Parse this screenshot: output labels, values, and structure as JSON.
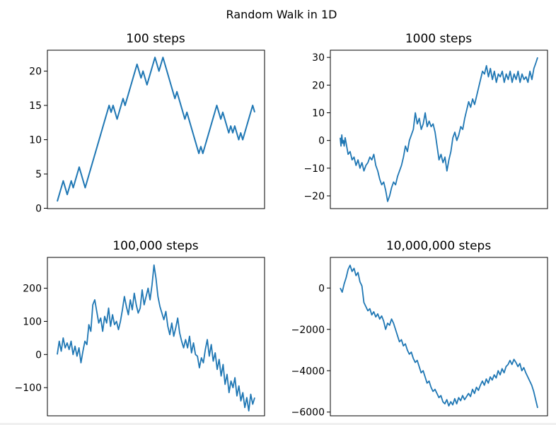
{
  "figure": {
    "suptitle": "Random Walk in 1D",
    "line_color": "#1f77b4"
  },
  "chart_data": [
    {
      "type": "line",
      "title": "100 steps",
      "xlabel": "",
      "ylabel": "",
      "x_ticks_visible": false,
      "ylim": [
        -0.05,
        23.05
      ],
      "yticks": [
        0,
        5,
        10,
        15,
        20
      ],
      "ytick_labels": [
        "0",
        "5",
        "10",
        "15",
        "20"
      ],
      "grid": false,
      "series": [
        {
          "values": [
            1,
            2,
            3,
            4,
            3,
            2,
            3,
            4,
            3,
            4,
            5,
            6,
            5,
            4,
            3,
            4,
            5,
            6,
            7,
            8,
            9,
            10,
            11,
            12,
            13,
            14,
            15,
            14,
            15,
            14,
            13,
            14,
            15,
            16,
            15,
            16,
            17,
            18,
            19,
            20,
            21,
            20,
            19,
            20,
            19,
            18,
            19,
            20,
            21,
            22,
            21,
            20,
            21,
            22,
            21,
            20,
            19,
            18,
            17,
            16,
            17,
            16,
            15,
            14,
            13,
            14,
            13,
            12,
            11,
            10,
            9,
            8,
            9,
            8,
            9,
            10,
            11,
            12,
            13,
            14,
            15,
            14,
            13,
            14,
            13,
            12,
            11,
            12,
            11,
            12,
            11,
            10,
            11,
            10,
            11,
            12,
            13,
            14,
            15,
            14
          ]
        }
      ]
    },
    {
      "type": "line",
      "title": "1000 steps",
      "xlabel": "",
      "ylabel": "",
      "x_ticks_visible": false,
      "ylim": [
        -24.6,
        32.6
      ],
      "yticks": [
        -20,
        -10,
        0,
        10,
        20,
        30
      ],
      "ytick_labels": [
        "−20",
        "−10",
        "0",
        "10",
        "20",
        "30"
      ],
      "grid": false,
      "series": [
        {
          "x": [
            0,
            4,
            8,
            12,
            16,
            20,
            25,
            30,
            35,
            40,
            50,
            60,
            70,
            80,
            90,
            100,
            110,
            120,
            130,
            140,
            150,
            160,
            170,
            180,
            190,
            200,
            210,
            220,
            230,
            240,
            250,
            260,
            270,
            280,
            290,
            300,
            310,
            320,
            330,
            340,
            350,
            360,
            370,
            380,
            390,
            400,
            410,
            420,
            430,
            440,
            450,
            460,
            470,
            480,
            490,
            500,
            510,
            520,
            530,
            540,
            550,
            560,
            570,
            580,
            590,
            600,
            610,
            620,
            630,
            640,
            650,
            660,
            670,
            680,
            690,
            700,
            710,
            720,
            730,
            740,
            750,
            760,
            770,
            780,
            790,
            800,
            810,
            820,
            830,
            840,
            850,
            860,
            870,
            880,
            890,
            900,
            910,
            920,
            930,
            940,
            950,
            960,
            970,
            980,
            990,
            999
          ],
          "values": [
            1,
            -2,
            2,
            -1,
            0,
            -2,
            1,
            -1,
            -3,
            -5,
            -4,
            -7,
            -6,
            -9,
            -7,
            -10,
            -8,
            -11,
            -9,
            -8,
            -6,
            -7,
            -5,
            -9,
            -11,
            -14,
            -16,
            -15,
            -18,
            -22,
            -20,
            -17,
            -15,
            -16,
            -13,
            -11,
            -9,
            -6,
            -2,
            -4,
            0,
            2,
            4,
            10,
            6,
            8,
            4,
            6,
            10,
            5,
            7,
            5,
            6,
            3,
            -2,
            -7,
            -5,
            -8,
            -6,
            -11,
            -7,
            -4,
            1,
            3,
            0,
            2,
            5,
            4,
            8,
            11,
            14,
            12,
            15,
            13,
            16,
            19,
            22,
            25,
            24,
            27,
            23,
            26,
            22,
            25,
            21,
            24,
            23,
            25,
            21,
            24,
            22,
            25,
            21,
            24,
            22,
            25,
            21,
            24,
            22,
            23,
            21,
            25,
            22,
            26,
            28,
            30
          ]
        }
      ]
    },
    {
      "type": "line",
      "title": "100,000 steps",
      "xlabel": "",
      "ylabel": "",
      "x_ticks_visible": false,
      "ylim": [
        -185,
        293
      ],
      "yticks": [
        -100,
        0,
        100,
        200
      ],
      "ytick_labels": [
        "−100",
        "0",
        "100",
        "200"
      ],
      "grid": false,
      "series": [
        {
          "x": [
            0,
            1000,
            2000,
            3000,
            4000,
            5000,
            6000,
            7000,
            8000,
            9000,
            10000,
            11000,
            12000,
            13000,
            14000,
            15000,
            16000,
            17000,
            18000,
            19000,
            20000,
            21000,
            22000,
            23000,
            24000,
            25000,
            26000,
            27000,
            28000,
            29000,
            30000,
            31000,
            32000,
            33000,
            34000,
            35000,
            36000,
            37000,
            38000,
            39000,
            40000,
            41000,
            42000,
            43000,
            44000,
            45000,
            46000,
            47000,
            48000,
            49000,
            50000,
            51000,
            52000,
            53000,
            54000,
            55000,
            56000,
            57000,
            58000,
            59000,
            60000,
            61000,
            62000,
            63000,
            64000,
            65000,
            66000,
            67000,
            68000,
            69000,
            70000,
            71000,
            72000,
            73000,
            74000,
            75000,
            76000,
            77000,
            78000,
            79000,
            80000,
            81000,
            82000,
            83000,
            84000,
            85000,
            86000,
            87000,
            88000,
            89000,
            90000,
            91000,
            92000,
            93000,
            94000,
            95000,
            96000,
            97000,
            98000,
            99000,
            99999
          ],
          "values": [
            0,
            40,
            10,
            50,
            20,
            35,
            15,
            40,
            0,
            25,
            -5,
            20,
            -25,
            10,
            40,
            30,
            90,
            70,
            150,
            165,
            130,
            95,
            110,
            70,
            115,
            95,
            140,
            85,
            120,
            90,
            100,
            75,
            100,
            135,
            175,
            145,
            120,
            165,
            135,
            185,
            150,
            125,
            140,
            195,
            150,
            175,
            200,
            165,
            210,
            270,
            230,
            175,
            145,
            125,
            105,
            130,
            85,
            60,
            95,
            55,
            80,
            110,
            65,
            40,
            20,
            45,
            20,
            55,
            5,
            35,
            0,
            -5,
            -40,
            -10,
            -25,
            15,
            45,
            -5,
            30,
            -20,
            5,
            -45,
            -15,
            -65,
            -30,
            -90,
            -60,
            -115,
            -80,
            -100,
            -70,
            -125,
            -95,
            -140,
            -115,
            -160,
            -130,
            -170,
            -120,
            -150,
            -130
          ]
        }
      ]
    },
    {
      "type": "line",
      "title": "10,000,000 steps",
      "xlabel": "",
      "ylabel": "",
      "x_ticks_visible": false,
      "ylim": [
        -6180,
        1480
      ],
      "yticks": [
        -6000,
        -4000,
        -2000,
        0
      ],
      "ytick_labels": [
        "−6000",
        "−4000",
        "−2000",
        "0"
      ],
      "grid": false,
      "series": [
        {
          "x": [
            0,
            100000,
            200000,
            300000,
            400000,
            500000,
            600000,
            700000,
            800000,
            900000,
            1000000,
            1100000,
            1200000,
            1300000,
            1400000,
            1500000,
            1600000,
            1700000,
            1800000,
            1900000,
            2000000,
            2100000,
            2200000,
            2300000,
            2400000,
            2500000,
            2600000,
            2700000,
            2800000,
            2900000,
            3000000,
            3100000,
            3200000,
            3300000,
            3400000,
            3500000,
            3600000,
            3700000,
            3800000,
            3900000,
            4000000,
            4100000,
            4200000,
            4300000,
            4400000,
            4500000,
            4600000,
            4700000,
            4800000,
            4900000,
            5000000,
            5100000,
            5200000,
            5300000,
            5400000,
            5500000,
            5600000,
            5700000,
            5800000,
            5900000,
            6000000,
            6100000,
            6200000,
            6300000,
            6400000,
            6500000,
            6600000,
            6700000,
            6800000,
            6900000,
            7000000,
            7100000,
            7200000,
            7300000,
            7400000,
            7500000,
            7600000,
            7700000,
            7800000,
            7900000,
            8000000,
            8100000,
            8200000,
            8300000,
            8400000,
            8500000,
            8600000,
            8700000,
            8800000,
            8900000,
            9000000,
            9100000,
            9200000,
            9300000,
            9400000,
            9500000,
            9600000,
            9700000,
            9800000,
            9900000,
            9999999
          ],
          "values": [
            0,
            -200,
            200,
            500,
            900,
            1100,
            800,
            950,
            600,
            750,
            300,
            100,
            -700,
            -900,
            -1100,
            -1000,
            -1300,
            -1150,
            -1400,
            -1250,
            -1500,
            -1350,
            -1600,
            -2000,
            -1700,
            -1800,
            -1500,
            -1700,
            -2000,
            -2300,
            -2600,
            -2500,
            -2800,
            -2700,
            -3000,
            -3200,
            -3100,
            -3400,
            -3600,
            -3500,
            -3800,
            -4100,
            -4000,
            -4300,
            -4600,
            -4500,
            -4800,
            -5000,
            -4900,
            -5100,
            -5300,
            -5200,
            -5500,
            -5600,
            -5400,
            -5700,
            -5500,
            -5650,
            -5350,
            -5600,
            -5300,
            -5450,
            -5200,
            -5400,
            -5250,
            -5100,
            -5250,
            -4900,
            -5100,
            -4800,
            -4950,
            -4700,
            -4500,
            -4700,
            -4400,
            -4600,
            -4300,
            -4450,
            -4200,
            -4350,
            -4000,
            -4200,
            -3900,
            -4100,
            -3800,
            -3700,
            -3500,
            -3700,
            -3450,
            -3600,
            -3800,
            -3650,
            -4000,
            -3850,
            -4100,
            -4300,
            -4500,
            -4700,
            -5000,
            -5400,
            -5800
          ]
        }
      ]
    }
  ]
}
